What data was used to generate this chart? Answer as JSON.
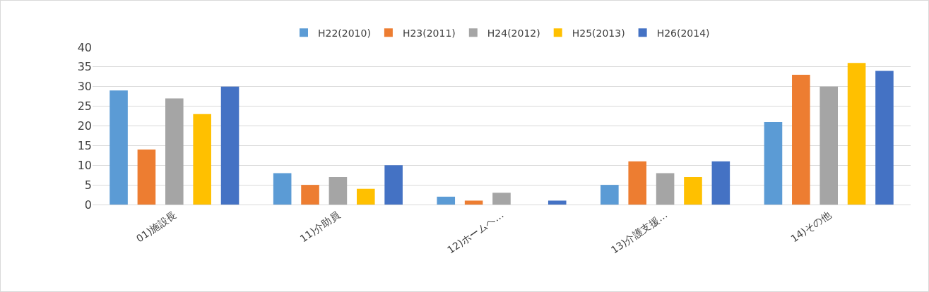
{
  "chart_data": {
    "type": "bar",
    "categories": [
      "01)施設長",
      "11)介助員",
      "12)ホームヘ…",
      "13)介護支援…",
      "14)その他"
    ],
    "series": [
      {
        "name": "H22(2010)",
        "color": "#5b9bd5",
        "values": [
          29,
          8,
          2,
          5,
          21
        ]
      },
      {
        "name": "H23(2011)",
        "color": "#ed7d31",
        "values": [
          14,
          5,
          1,
          11,
          33
        ]
      },
      {
        "name": "H24(2012)",
        "color": "#a5a5a5",
        "values": [
          27,
          7,
          3,
          8,
          30
        ]
      },
      {
        "name": "H25(2013)",
        "color": "#ffc000",
        "values": [
          23,
          4,
          0,
          7,
          36
        ]
      },
      {
        "name": "H26(2014)",
        "color": "#4472c4",
        "values": [
          30,
          10,
          1,
          11,
          34
        ]
      }
    ],
    "ylim": [
      0,
      40
    ],
    "yticks": [
      0,
      5,
      10,
      15,
      20,
      25,
      30,
      35,
      40
    ],
    "grid": "y",
    "legend": "top"
  }
}
